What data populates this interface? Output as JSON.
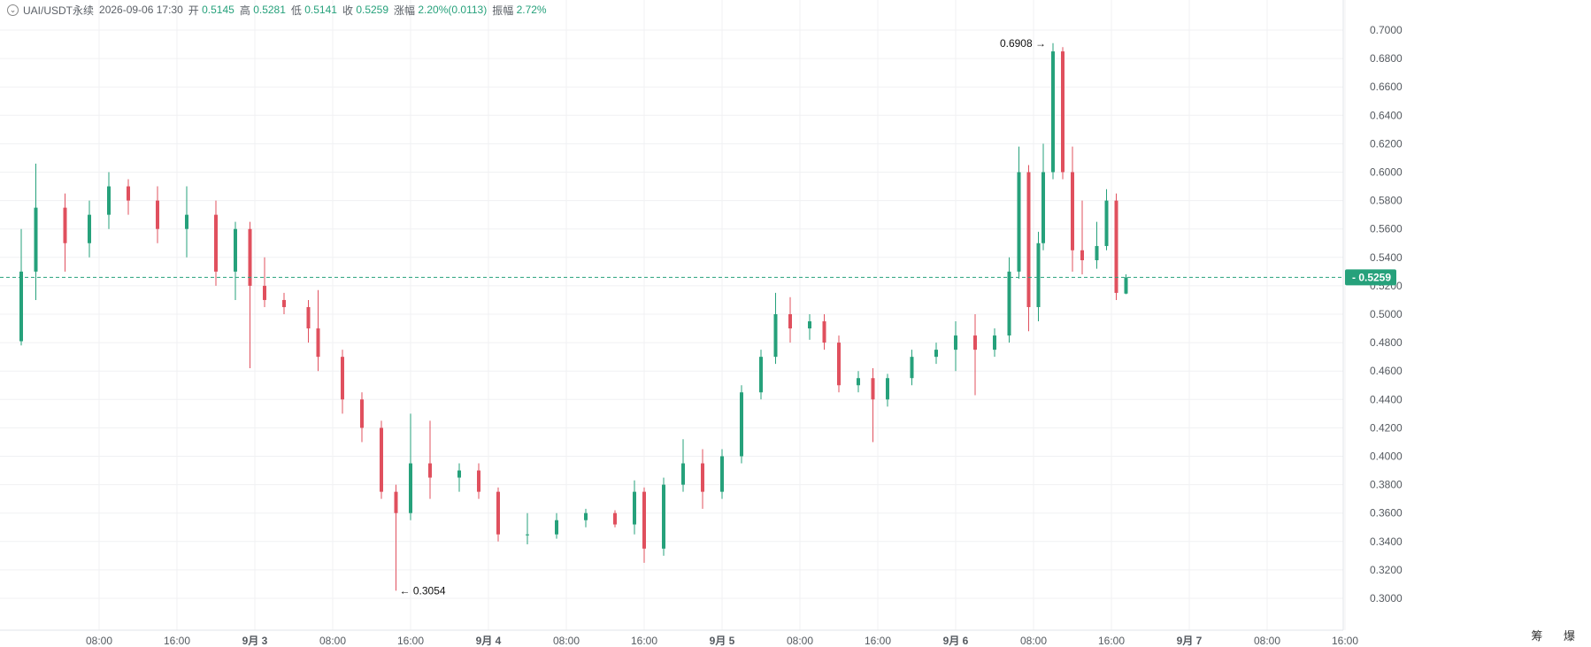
{
  "legend": {
    "symbol": "UAI/USDT永续",
    "datetime": "2026-09-06 17:30",
    "open_label": "开",
    "open": "0.5145",
    "high_label": "高",
    "high": "0.5281",
    "low_label": "低",
    "low": "0.5141",
    "close_label": "收",
    "close": "0.5259",
    "change_label": "涨幅",
    "change": "2.20%(0.0113)",
    "amplitude_label": "振幅",
    "amplitude": "2.72%"
  },
  "corner_glyphs": "筹 爆",
  "colors": {
    "up": "#26a17b",
    "down": "#e0505e",
    "grid": "#f0f1f3",
    "axis_text": "#555a60",
    "last_price_bg": "#26a17b"
  },
  "chart_data": {
    "type": "candlestick",
    "interval_minutes": 30,
    "ylim": [
      0.29,
      0.71
    ],
    "y_ticks": [
      "0.3000",
      "0.3200",
      "0.3400",
      "0.3600",
      "0.3800",
      "0.4000",
      "0.4200",
      "0.4400",
      "0.4600",
      "0.4800",
      "0.5000",
      "0.5200",
      "0.5400",
      "0.5600",
      "0.5800",
      "0.6000",
      "0.6200",
      "0.6400",
      "0.6600",
      "0.6800",
      "0.7000"
    ],
    "x_ticks": [
      {
        "label": "08:00",
        "t": "2026-09-02 08:00",
        "bold": false
      },
      {
        "label": "16:00",
        "t": "2026-09-02 16:00",
        "bold": false
      },
      {
        "label": "9月 3",
        "t": "2026-09-03 00:00",
        "bold": true
      },
      {
        "label": "08:00",
        "t": "2026-09-03 08:00",
        "bold": false
      },
      {
        "label": "16:00",
        "t": "2026-09-03 16:00",
        "bold": false
      },
      {
        "label": "9月 4",
        "t": "2026-09-04 00:00",
        "bold": true
      },
      {
        "label": "08:00",
        "t": "2026-09-04 08:00",
        "bold": false
      },
      {
        "label": "16:00",
        "t": "2026-09-04 16:00",
        "bold": false
      },
      {
        "label": "9月 5",
        "t": "2026-09-05 00:00",
        "bold": true
      },
      {
        "label": "08:00",
        "t": "2026-09-05 08:00",
        "bold": false
      },
      {
        "label": "16:00",
        "t": "2026-09-05 16:00",
        "bold": false
      },
      {
        "label": "9月 6",
        "t": "2026-09-06 00:00",
        "bold": true
      },
      {
        "label": "08:00",
        "t": "2026-09-06 08:00",
        "bold": false
      },
      {
        "label": "16:00",
        "t": "2026-09-06 16:00",
        "bold": false
      },
      {
        "label": "9月 7",
        "t": "2026-09-07 00:00",
        "bold": true
      },
      {
        "label": "08:00",
        "t": "2026-09-07 08:00",
        "bold": false
      },
      {
        "label": "16:00",
        "t": "2026-09-07 16:00",
        "bold": false
      }
    ],
    "last_price": "0.5259",
    "last_price_value": 0.5259,
    "max_label": {
      "text": "0.6908",
      "value": 0.6908,
      "t": "2026-09-06 10:00"
    },
    "min_label": {
      "text": "0.3054",
      "value": 0.3054,
      "t": "2026-09-03 14:30"
    },
    "candles": [
      {
        "t": "2026-09-01 21:00",
        "o": 0.478,
        "h": 0.485,
        "l": 0.474,
        "c": 0.481
      },
      {
        "t": "2026-09-02 00:00",
        "o": 0.481,
        "h": 0.56,
        "l": 0.478,
        "c": 0.53
      },
      {
        "t": "2026-09-02 01:30",
        "o": 0.53,
        "h": 0.606,
        "l": 0.51,
        "c": 0.575
      },
      {
        "t": "2026-09-02 04:30",
        "o": 0.575,
        "h": 0.585,
        "l": 0.53,
        "c": 0.55
      },
      {
        "t": "2026-09-02 07:00",
        "o": 0.55,
        "h": 0.58,
        "l": 0.54,
        "c": 0.57
      },
      {
        "t": "2026-09-02 09:00",
        "o": 0.57,
        "h": 0.6,
        "l": 0.56,
        "c": 0.59
      },
      {
        "t": "2026-09-02 11:00",
        "o": 0.59,
        "h": 0.595,
        "l": 0.57,
        "c": 0.58
      },
      {
        "t": "2026-09-02 14:00",
        "o": 0.58,
        "h": 0.59,
        "l": 0.55,
        "c": 0.56
      },
      {
        "t": "2026-09-02 17:00",
        "o": 0.56,
        "h": 0.59,
        "l": 0.54,
        "c": 0.57
      },
      {
        "t": "2026-09-02 20:00",
        "o": 0.57,
        "h": 0.58,
        "l": 0.52,
        "c": 0.53
      },
      {
        "t": "2026-09-02 22:00",
        "o": 0.53,
        "h": 0.565,
        "l": 0.51,
        "c": 0.56
      },
      {
        "t": "2026-09-02 23:30",
        "o": 0.56,
        "h": 0.565,
        "l": 0.462,
        "c": 0.52
      },
      {
        "t": "2026-09-03 01:00",
        "o": 0.52,
        "h": 0.54,
        "l": 0.505,
        "c": 0.51
      },
      {
        "t": "2026-09-03 03:00",
        "o": 0.51,
        "h": 0.515,
        "l": 0.5,
        "c": 0.505
      },
      {
        "t": "2026-09-03 05:30",
        "o": 0.505,
        "h": 0.51,
        "l": 0.48,
        "c": 0.49
      },
      {
        "t": "2026-09-03 06:30",
        "o": 0.49,
        "h": 0.517,
        "l": 0.46,
        "c": 0.47
      },
      {
        "t": "2026-09-03 09:00",
        "o": 0.47,
        "h": 0.475,
        "l": 0.43,
        "c": 0.44
      },
      {
        "t": "2026-09-03 11:00",
        "o": 0.44,
        "h": 0.445,
        "l": 0.41,
        "c": 0.42
      },
      {
        "t": "2026-09-03 13:00",
        "o": 0.42,
        "h": 0.425,
        "l": 0.37,
        "c": 0.375
      },
      {
        "t": "2026-09-03 14:30",
        "o": 0.375,
        "h": 0.38,
        "l": 0.3054,
        "c": 0.36
      },
      {
        "t": "2026-09-03 16:00",
        "o": 0.36,
        "h": 0.43,
        "l": 0.355,
        "c": 0.395
      },
      {
        "t": "2026-09-03 18:00",
        "o": 0.395,
        "h": 0.425,
        "l": 0.37,
        "c": 0.385
      },
      {
        "t": "2026-09-03 21:00",
        "o": 0.385,
        "h": 0.395,
        "l": 0.375,
        "c": 0.39
      },
      {
        "t": "2026-09-03 23:00",
        "o": 0.39,
        "h": 0.395,
        "l": 0.37,
        "c": 0.375
      },
      {
        "t": "2026-09-04 01:00",
        "o": 0.375,
        "h": 0.378,
        "l": 0.34,
        "c": 0.345
      },
      {
        "t": "2026-09-04 04:00",
        "o": 0.345,
        "h": 0.36,
        "l": 0.338,
        "c": 0.345
      },
      {
        "t": "2026-09-04 07:00",
        "o": 0.345,
        "h": 0.36,
        "l": 0.342,
        "c": 0.355
      },
      {
        "t": "2026-09-04 10:00",
        "o": 0.355,
        "h": 0.363,
        "l": 0.35,
        "c": 0.36
      },
      {
        "t": "2026-09-04 13:00",
        "o": 0.36,
        "h": 0.362,
        "l": 0.35,
        "c": 0.352
      },
      {
        "t": "2026-09-04 15:00",
        "o": 0.352,
        "h": 0.383,
        "l": 0.345,
        "c": 0.375
      },
      {
        "t": "2026-09-04 16:00",
        "o": 0.375,
        "h": 0.378,
        "l": 0.325,
        "c": 0.335
      },
      {
        "t": "2026-09-04 18:00",
        "o": 0.335,
        "h": 0.385,
        "l": 0.33,
        "c": 0.38
      },
      {
        "t": "2026-09-04 20:00",
        "o": 0.38,
        "h": 0.412,
        "l": 0.375,
        "c": 0.395
      },
      {
        "t": "2026-09-04 22:00",
        "o": 0.395,
        "h": 0.405,
        "l": 0.363,
        "c": 0.375
      },
      {
        "t": "2026-09-05 00:00",
        "o": 0.375,
        "h": 0.405,
        "l": 0.37,
        "c": 0.4
      },
      {
        "t": "2026-09-05 02:00",
        "o": 0.4,
        "h": 0.45,
        "l": 0.395,
        "c": 0.445
      },
      {
        "t": "2026-09-05 04:00",
        "o": 0.445,
        "h": 0.475,
        "l": 0.44,
        "c": 0.47
      },
      {
        "t": "2026-09-05 05:30",
        "o": 0.47,
        "h": 0.515,
        "l": 0.465,
        "c": 0.5
      },
      {
        "t": "2026-09-05 07:00",
        "o": 0.5,
        "h": 0.512,
        "l": 0.48,
        "c": 0.49
      },
      {
        "t": "2026-09-05 09:00",
        "o": 0.49,
        "h": 0.5,
        "l": 0.482,
        "c": 0.495
      },
      {
        "t": "2026-09-05 10:30",
        "o": 0.495,
        "h": 0.5,
        "l": 0.475,
        "c": 0.48
      },
      {
        "t": "2026-09-05 12:00",
        "o": 0.48,
        "h": 0.485,
        "l": 0.445,
        "c": 0.45
      },
      {
        "t": "2026-09-05 14:00",
        "o": 0.45,
        "h": 0.46,
        "l": 0.445,
        "c": 0.455
      },
      {
        "t": "2026-09-05 15:30",
        "o": 0.455,
        "h": 0.462,
        "l": 0.41,
        "c": 0.44
      },
      {
        "t": "2026-09-05 17:00",
        "o": 0.44,
        "h": 0.458,
        "l": 0.435,
        "c": 0.455
      },
      {
        "t": "2026-09-05 19:30",
        "o": 0.455,
        "h": 0.475,
        "l": 0.45,
        "c": 0.47
      },
      {
        "t": "2026-09-05 22:00",
        "o": 0.47,
        "h": 0.48,
        "l": 0.465,
        "c": 0.475
      },
      {
        "t": "2026-09-06 00:00",
        "o": 0.475,
        "h": 0.495,
        "l": 0.46,
        "c": 0.485
      },
      {
        "t": "2026-09-06 02:00",
        "o": 0.485,
        "h": 0.5,
        "l": 0.443,
        "c": 0.475
      },
      {
        "t": "2026-09-06 04:00",
        "o": 0.475,
        "h": 0.49,
        "l": 0.47,
        "c": 0.485
      },
      {
        "t": "2026-09-06 05:30",
        "o": 0.485,
        "h": 0.54,
        "l": 0.48,
        "c": 0.53
      },
      {
        "t": "2026-09-06 06:30",
        "o": 0.53,
        "h": 0.618,
        "l": 0.525,
        "c": 0.6
      },
      {
        "t": "2026-09-06 07:30",
        "o": 0.6,
        "h": 0.605,
        "l": 0.488,
        "c": 0.505
      },
      {
        "t": "2026-09-06 08:30",
        "o": 0.505,
        "h": 0.558,
        "l": 0.495,
        "c": 0.55
      },
      {
        "t": "2026-09-06 09:00",
        "o": 0.55,
        "h": 0.62,
        "l": 0.545,
        "c": 0.6
      },
      {
        "t": "2026-09-06 10:00",
        "o": 0.6,
        "h": 0.6908,
        "l": 0.595,
        "c": 0.685
      },
      {
        "t": "2026-09-06 11:00",
        "o": 0.685,
        "h": 0.688,
        "l": 0.595,
        "c": 0.6
      },
      {
        "t": "2026-09-06 12:00",
        "o": 0.6,
        "h": 0.618,
        "l": 0.53,
        "c": 0.545
      },
      {
        "t": "2026-09-06 13:00",
        "o": 0.545,
        "h": 0.58,
        "l": 0.528,
        "c": 0.538
      },
      {
        "t": "2026-09-06 14:30",
        "o": 0.538,
        "h": 0.565,
        "l": 0.532,
        "c": 0.548
      },
      {
        "t": "2026-09-06 15:30",
        "o": 0.548,
        "h": 0.588,
        "l": 0.545,
        "c": 0.58
      },
      {
        "t": "2026-09-06 16:30",
        "o": 0.58,
        "h": 0.585,
        "l": 0.51,
        "c": 0.515
      },
      {
        "t": "2026-09-06 17:30",
        "o": 0.5145,
        "h": 0.5281,
        "l": 0.5141,
        "c": 0.5259
      }
    ]
  }
}
